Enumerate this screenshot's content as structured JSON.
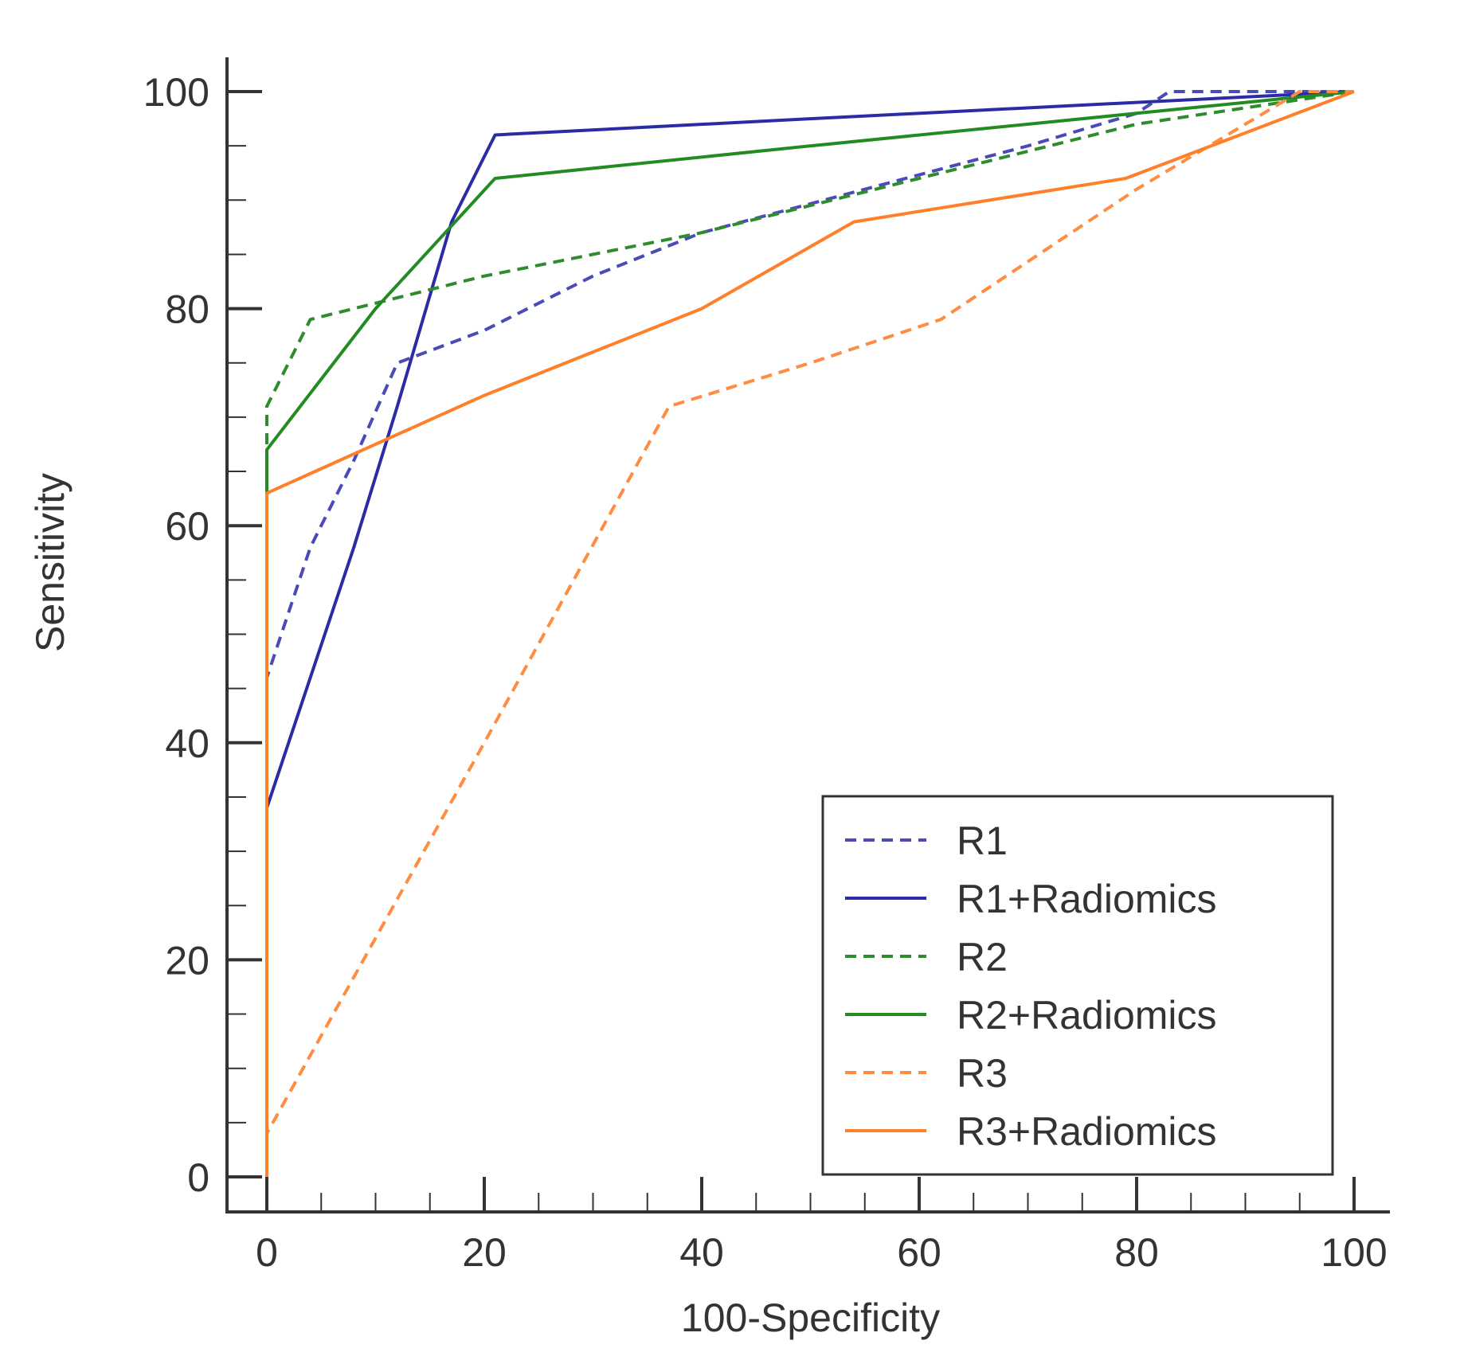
{
  "chart_data": {
    "type": "line",
    "title": "",
    "xlabel": "100-Specificity",
    "ylabel": "Sensitivity",
    "xlim": [
      0,
      100
    ],
    "ylim": [
      0,
      100
    ],
    "x_ticks": [
      0,
      20,
      40,
      60,
      80,
      100
    ],
    "y_ticks": [
      0,
      20,
      40,
      60,
      80,
      100
    ],
    "x_tick_labels": [
      "0",
      "20",
      "40",
      "60",
      "80",
      "100"
    ],
    "y_tick_labels": [
      "0",
      "20",
      "40",
      "60",
      "80",
      "100"
    ],
    "minor_tick_step": 5,
    "grid": false,
    "legend_position": "bottom-right",
    "series": [
      {
        "name": "R1",
        "color": "#4a4ab8",
        "style": "dashed",
        "points": [
          [
            0,
            0
          ],
          [
            0,
            46
          ],
          [
            4,
            58
          ],
          [
            8,
            66
          ],
          [
            12,
            75
          ],
          [
            20,
            78
          ],
          [
            30,
            83
          ],
          [
            40,
            87
          ],
          [
            55,
            91
          ],
          [
            70,
            95
          ],
          [
            80,
            98
          ],
          [
            83,
            100
          ],
          [
            100,
            100
          ]
        ]
      },
      {
        "name": "R1+Radiomics",
        "color": "#2b2ba6",
        "style": "solid",
        "points": [
          [
            0,
            0
          ],
          [
            0,
            34
          ],
          [
            8,
            58
          ],
          [
            12,
            71
          ],
          [
            17,
            88
          ],
          [
            21,
            96
          ],
          [
            50,
            97.5
          ],
          [
            80,
            99
          ],
          [
            100,
            100
          ]
        ]
      },
      {
        "name": "R2",
        "color": "#2e8b2e",
        "style": "dashed",
        "points": [
          [
            0,
            0
          ],
          [
            0,
            71
          ],
          [
            4,
            79
          ],
          [
            20,
            83
          ],
          [
            40,
            87
          ],
          [
            60,
            92
          ],
          [
            80,
            97
          ],
          [
            100,
            100
          ]
        ]
      },
      {
        "name": "R2+Radiomics",
        "color": "#228b22",
        "style": "solid",
        "points": [
          [
            0,
            0
          ],
          [
            0,
            67
          ],
          [
            10,
            80
          ],
          [
            21,
            92
          ],
          [
            50,
            95
          ],
          [
            80,
            98
          ],
          [
            100,
            100
          ]
        ]
      },
      {
        "name": "R3",
        "color": "#ff8c40",
        "style": "dashed",
        "points": [
          [
            0,
            0
          ],
          [
            0,
            4
          ],
          [
            20,
            40
          ],
          [
            37,
            71
          ],
          [
            50,
            75
          ],
          [
            62,
            79
          ],
          [
            80,
            91
          ],
          [
            95,
            100
          ],
          [
            100,
            100
          ]
        ]
      },
      {
        "name": "R3+Radiomics",
        "color": "#ff7f2a",
        "style": "solid",
        "points": [
          [
            0,
            0
          ],
          [
            0,
            63
          ],
          [
            20,
            72
          ],
          [
            40,
            80
          ],
          [
            54,
            88
          ],
          [
            79,
            92
          ],
          [
            100,
            100
          ]
        ]
      }
    ]
  }
}
